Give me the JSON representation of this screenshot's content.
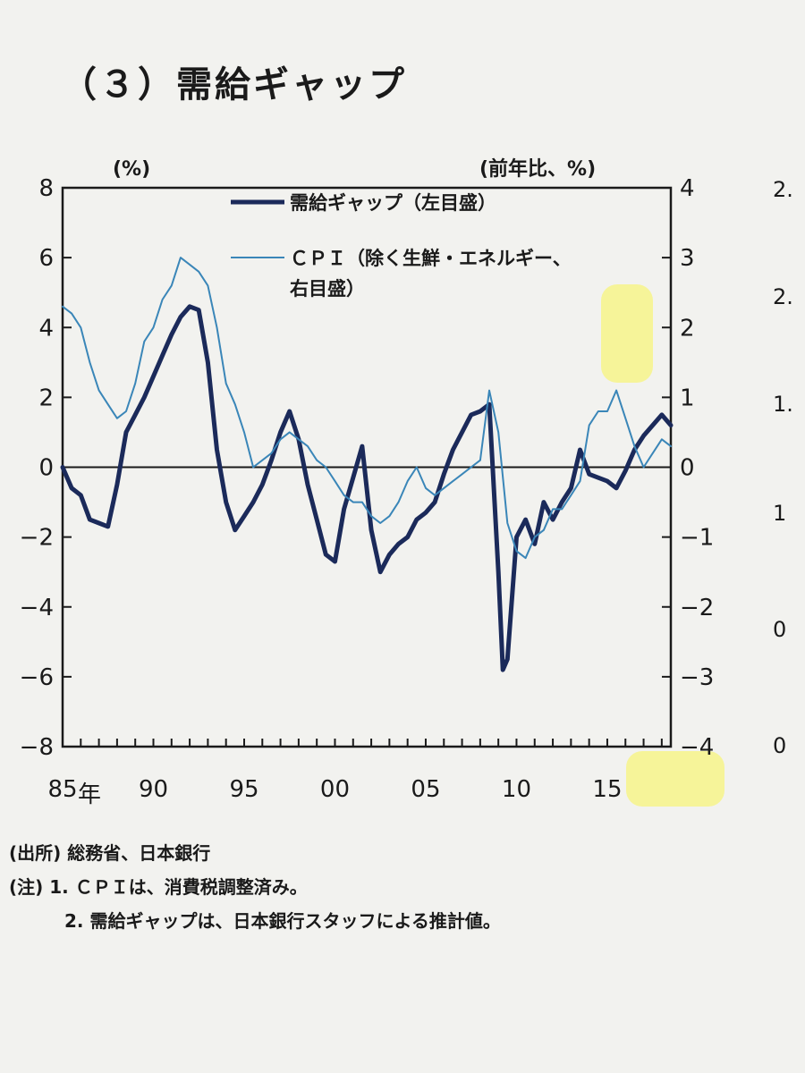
{
  "page": {
    "section_title": "（３）需給ギャップ",
    "right_cut_title": "（",
    "right_cut_ticks": [
      "2.",
      "2.",
      "1.",
      "1",
      "0",
      "0"
    ],
    "source_label": "(出所)",
    "source_text": "総務省、日本銀行",
    "notes_label": "(注)",
    "note1": "1.  ＣＰＩは、消費税調整済み。",
    "note2": "2.  需給ギャップは、日本銀行スタッフによる推計値。"
  },
  "chart_data": {
    "type": "line",
    "left_axis": {
      "unit": "(%)",
      "ylim": [
        -8,
        8
      ],
      "ticks": [
        "8",
        "6",
        "4",
        "2",
        "0",
        "−2",
        "−4",
        "−6",
        "−8"
      ]
    },
    "right_axis": {
      "unit": "(前年比、%)",
      "ylim": [
        -4,
        4
      ],
      "ticks": [
        "4",
        "3",
        "2",
        "1",
        "0",
        "−1",
        "−2",
        "−3",
        "−4"
      ]
    },
    "x_axis": {
      "xlim": [
        1985.0,
        2018.5
      ],
      "tick_labels": [
        "85",
        "90",
        "95",
        "00",
        "05",
        "10",
        "15"
      ],
      "tick_years": [
        1985,
        1990,
        1995,
        2000,
        2005,
        2010,
        2015
      ],
      "year_suffix": "年"
    },
    "legend_position": "top-center",
    "series": [
      {
        "name": "需給ギャップ（左目盛）",
        "axis": "left",
        "color": "#1b2a5a",
        "x": [
          1985.0,
          1985.5,
          1986.0,
          1986.5,
          1987.0,
          1987.5,
          1988.0,
          1988.5,
          1989.0,
          1989.5,
          1990.0,
          1990.5,
          1991.0,
          1991.5,
          1992.0,
          1992.5,
          1993.0,
          1993.5,
          1994.0,
          1994.5,
          1995.0,
          1995.5,
          1996.0,
          1996.5,
          1997.0,
          1997.5,
          1998.0,
          1998.5,
          1999.0,
          1999.5,
          2000.0,
          2000.5,
          2001.0,
          2001.5,
          2002.0,
          2002.5,
          2003.0,
          2003.5,
          2004.0,
          2004.5,
          2005.0,
          2005.5,
          2006.0,
          2006.5,
          2007.0,
          2007.5,
          2008.0,
          2008.5,
          2009.0,
          2009.25,
          2009.5,
          2010.0,
          2010.5,
          2011.0,
          2011.5,
          2012.0,
          2012.5,
          2013.0,
          2013.5,
          2014.0,
          2014.5,
          2015.0,
          2015.5,
          2016.0,
          2016.5,
          2017.0,
          2017.5,
          2018.0,
          2018.5
        ],
        "values": [
          0.0,
          -0.6,
          -0.8,
          -1.5,
          -1.6,
          -1.7,
          -0.5,
          1.0,
          1.5,
          2.0,
          2.6,
          3.2,
          3.8,
          4.3,
          4.6,
          4.5,
          3.0,
          0.5,
          -1.0,
          -1.8,
          -1.4,
          -1.0,
          -0.5,
          0.2,
          1.0,
          1.6,
          0.8,
          -0.5,
          -1.5,
          -2.5,
          -2.7,
          -1.2,
          -0.3,
          0.6,
          -1.8,
          -3.0,
          -2.5,
          -2.2,
          -2.0,
          -1.5,
          -1.3,
          -1.0,
          -0.2,
          0.5,
          1.0,
          1.5,
          1.6,
          1.8,
          -3.0,
          -5.8,
          -5.5,
          -2.0,
          -1.5,
          -2.2,
          -1.0,
          -1.5,
          -1.0,
          -0.6,
          0.5,
          -0.2,
          -0.3,
          -0.4,
          -0.6,
          -0.1,
          0.5,
          0.9,
          1.2,
          1.5,
          1.2
        ]
      },
      {
        "name": "ＣＰＩ（除く生鮮・エネルギー、右目盛）",
        "axis": "right",
        "color": "#3a86b8",
        "x": [
          1985.0,
          1985.5,
          1986.0,
          1986.5,
          1987.0,
          1987.5,
          1988.0,
          1988.5,
          1989.0,
          1989.5,
          1990.0,
          1990.5,
          1991.0,
          1991.5,
          1992.0,
          1992.5,
          1993.0,
          1993.5,
          1994.0,
          1994.5,
          1995.0,
          1995.5,
          1996.0,
          1996.5,
          1997.0,
          1997.5,
          1998.0,
          1998.5,
          1999.0,
          1999.5,
          2000.0,
          2000.5,
          2001.0,
          2001.5,
          2002.0,
          2002.5,
          2003.0,
          2003.5,
          2004.0,
          2004.5,
          2005.0,
          2005.5,
          2006.0,
          2006.5,
          2007.0,
          2007.5,
          2008.0,
          2008.5,
          2009.0,
          2009.5,
          2010.0,
          2010.5,
          2011.0,
          2011.5,
          2012.0,
          2012.5,
          2013.0,
          2013.5,
          2014.0,
          2014.5,
          2015.0,
          2015.5,
          2016.0,
          2016.5,
          2017.0,
          2017.5,
          2018.0,
          2018.5
        ],
        "values": [
          2.3,
          2.2,
          2.0,
          1.5,
          1.1,
          0.9,
          0.7,
          0.8,
          1.2,
          1.8,
          2.0,
          2.4,
          2.6,
          3.0,
          2.9,
          2.8,
          2.6,
          2.0,
          1.2,
          0.9,
          0.5,
          0.0,
          0.1,
          0.2,
          0.4,
          0.5,
          0.4,
          0.3,
          0.1,
          0.0,
          -0.2,
          -0.4,
          -0.5,
          -0.5,
          -0.7,
          -0.8,
          -0.7,
          -0.5,
          -0.2,
          0.0,
          -0.3,
          -0.4,
          -0.3,
          -0.2,
          -0.1,
          0.0,
          0.1,
          1.1,
          0.5,
          -0.8,
          -1.2,
          -1.3,
          -1.0,
          -0.9,
          -0.6,
          -0.6,
          -0.4,
          -0.2,
          0.6,
          0.8,
          0.8,
          1.1,
          0.7,
          0.3,
          0.0,
          0.2,
          0.4,
          0.3
        ]
      }
    ]
  }
}
